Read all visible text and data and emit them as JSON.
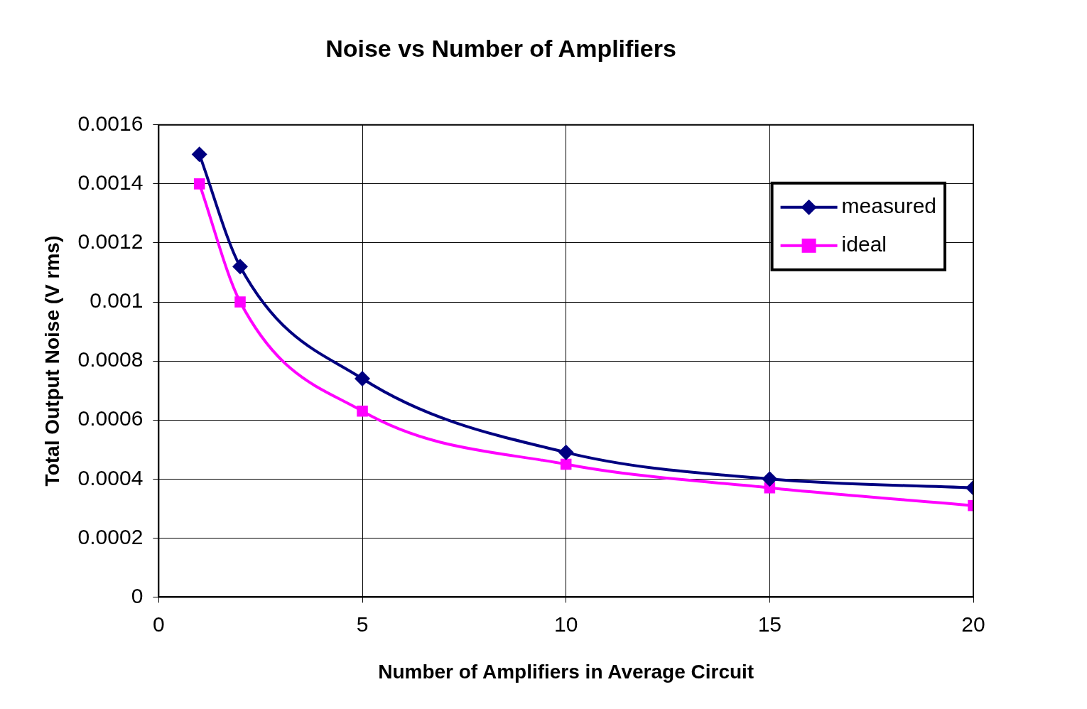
{
  "chart_data": {
    "type": "line",
    "title": "Noise vs Number of Amplifiers",
    "xlabel": "Number of Amplifiers in Average Circuit",
    "ylabel": "Total Output Noise (V rms)",
    "x": [
      1,
      2,
      5,
      10,
      15,
      20
    ],
    "series": [
      {
        "name": "measured",
        "color": "#000080",
        "marker": "diamond",
        "values": [
          0.0015,
          0.00112,
          0.00074,
          0.00049,
          0.0004,
          0.00037
        ]
      },
      {
        "name": "ideal",
        "color": "#ff00ff",
        "marker": "square",
        "values": [
          0.0014,
          0.001,
          0.00063,
          0.00045,
          0.00037,
          0.00031
        ]
      }
    ],
    "xlim": [
      0,
      20
    ],
    "xticks": [
      0,
      5,
      10,
      15,
      20
    ],
    "ylim": [
      0,
      0.0016
    ],
    "yticks": [
      {
        "value": 0,
        "label": "0"
      },
      {
        "value": 0.0002,
        "label": "0.0002"
      },
      {
        "value": 0.0004,
        "label": "0.0004"
      },
      {
        "value": 0.0006,
        "label": "0.0006"
      },
      {
        "value": 0.0008,
        "label": "0.0008"
      },
      {
        "value": 0.001,
        "label": "0.001"
      },
      {
        "value": 0.0012,
        "label": "0.0012"
      },
      {
        "value": 0.0014,
        "label": "0.0014"
      },
      {
        "value": 0.0016,
        "label": "0.0016"
      }
    ],
    "grid": true,
    "legend": "top right",
    "line_style": "solid"
  }
}
